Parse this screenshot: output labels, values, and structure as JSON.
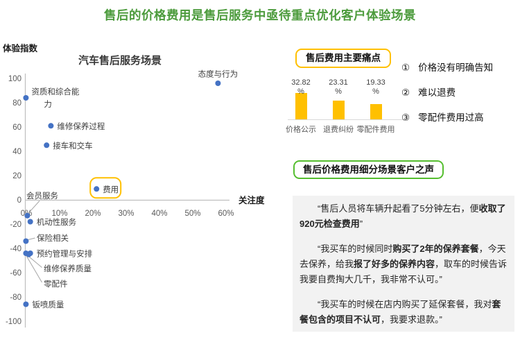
{
  "title": "售后的价格费用是售后服务中亟待重点优化客户体验场景",
  "colors": {
    "title_green": "#4C9B3C",
    "accent_orange": "#FFC000",
    "accent_green": "#55BE2F",
    "dot_blue": "#4472C4",
    "bar_yellow": "#FFC000",
    "quote_bg": "#F2F2F2",
    "axis_gray": "#BFBFBF",
    "leader_gray": "#A6A6A6"
  },
  "chart_data": [
    {
      "type": "scatter",
      "title": "汽车售后服务场景",
      "xlabel": "关注度",
      "ylabel": "体验指数",
      "xlim": [
        0,
        62
      ],
      "ylim": [
        -100,
        100
      ],
      "grid": false,
      "x_tick_values": [
        0,
        10,
        20,
        30,
        40,
        50,
        60
      ],
      "x_ticks": [
        "0%",
        "10%",
        "20%",
        "30%",
        "40%",
        "50%",
        "60%"
      ],
      "y_ticks": [
        100,
        80,
        60,
        40,
        20,
        0,
        -20,
        -40,
        -60,
        -80,
        -100
      ],
      "points": [
        {
          "label": "态度与行为",
          "x": 58,
          "y": 96,
          "placement": "above"
        },
        {
          "label": "资质和综合能力",
          "x": 0.3,
          "y": 84,
          "placement": "right-wrap"
        },
        {
          "label": "维修保养过程",
          "x": 7.8,
          "y": 61,
          "placement": "right"
        },
        {
          "label": "接车和交车",
          "x": 6.5,
          "y": 45,
          "placement": "right"
        },
        {
          "label": "费用",
          "x": 21.5,
          "y": 9,
          "placement": "right",
          "highlight": true
        },
        {
          "label": "会员服务",
          "x": 0.7,
          "y": -13,
          "placement": "leader-above-axis"
        },
        {
          "label": "机动性服务",
          "x": 1.6,
          "y": -18,
          "placement": "right"
        },
        {
          "label": "保险相关",
          "x": 0.3,
          "y": -34,
          "placement": "leader-right"
        },
        {
          "label": "预约管理与安排",
          "x": 1.6,
          "y": -44,
          "placement": "right"
        },
        {
          "label": "维修保养质量",
          "x": 1.1,
          "y": -45,
          "placement": "leader-below-1"
        },
        {
          "label": "零配件",
          "x": 0.3,
          "y": -44,
          "placement": "leader-below-2"
        },
        {
          "label": "钣喷质量",
          "x": 0.3,
          "y": -86,
          "placement": "right"
        }
      ],
      "highlighted_point": "费用"
    },
    {
      "type": "bar",
      "categories": [
        "价格公示",
        "退费纠纷",
        "零配件费用"
      ],
      "values": [
        32.82,
        23.31,
        19.33
      ],
      "value_suffix": "%",
      "ylim": [
        0,
        35
      ],
      "grid": false
    }
  ],
  "pain_points": {
    "box_title": "售后费用主要痛点",
    "items": [
      {
        "num": "①",
        "text": "价格没有明确告知"
      },
      {
        "num": "②",
        "text": "难以退费"
      },
      {
        "num": "③",
        "text": "零配件费用过高"
      }
    ]
  },
  "voice": {
    "box_title": "售后价格费用细分场景客户之声",
    "quotes": [
      [
        {
          "t": "“售后人员将车辆升起看了5分钟左右，便",
          "b": false
        },
        {
          "t": "收取了920元检查费用",
          "b": true
        },
        {
          "t": "”",
          "b": false
        }
      ],
      [
        {
          "t": "“我买车的时候同时",
          "b": false
        },
        {
          "t": "购买了2年的保养套餐",
          "b": true
        },
        {
          "t": "，今天去保养，给我",
          "b": false
        },
        {
          "t": "报了好多的保养内容",
          "b": true
        },
        {
          "t": "，取车的时候告诉我要自费掏大几千，我非常不认可。”",
          "b": false
        }
      ],
      [
        {
          "t": "“我买车的时候在店内购买了延保套餐，我对",
          "b": false
        },
        {
          "t": "套餐包含的项目不认可",
          "b": true
        },
        {
          "t": "，我要求退款。”",
          "b": false
        }
      ]
    ]
  }
}
